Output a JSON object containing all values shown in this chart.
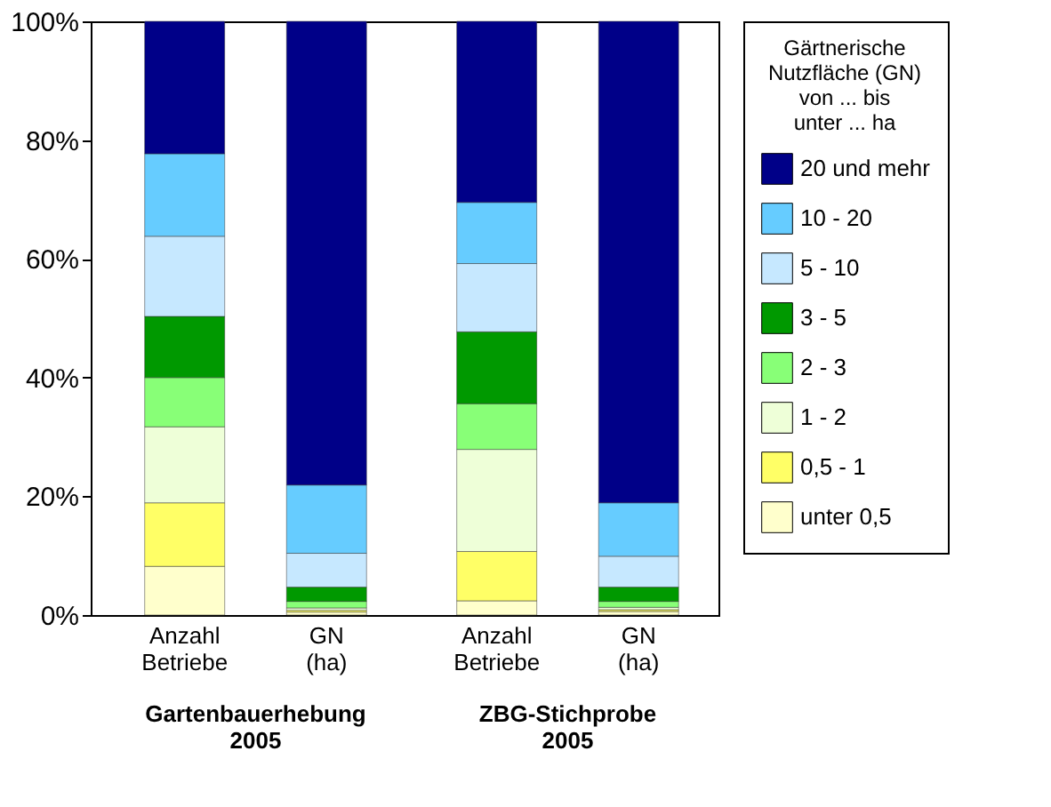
{
  "chart_data": {
    "type": "bar",
    "stacked": true,
    "categories": [
      "Anzahl Betriebe",
      "GN (ha)",
      "Anzahl Betriebe",
      "GN (ha)"
    ],
    "legend_title": "Gärtnerische\nNutzfläche (GN)\nvon ... bis\nunter ... ha",
    "legend": "right",
    "series": [
      {
        "name": "unter 0,5",
        "color": "#ffffcc",
        "values": [
          8.2,
          0.5,
          2.4,
          0.6
        ]
      },
      {
        "name": "0,5 - 1",
        "color": "#ffff66",
        "values": [
          10.7,
          0.3,
          8.3,
          0.3
        ]
      },
      {
        "name": "1 - 2",
        "color": "#eeffd8",
        "values": [
          12.8,
          0.4,
          17.2,
          0.4
        ]
      },
      {
        "name": "2 - 3",
        "color": "#88ff77",
        "values": [
          8.3,
          1.1,
          7.7,
          1.0
        ]
      },
      {
        "name": "3 - 5",
        "color": "#009900",
        "values": [
          10.3,
          2.4,
          12.1,
          2.4
        ]
      },
      {
        "name": "5 - 10",
        "color": "#c6e8ff",
        "values": [
          13.5,
          5.7,
          11.5,
          5.2
        ]
      },
      {
        "name": "10 - 20",
        "color": "#66ccff",
        "values": [
          13.9,
          11.5,
          10.3,
          9.0
        ]
      },
      {
        "name": "20 und mehr",
        "color": "#000088",
        "values": [
          22.3,
          78.1,
          30.5,
          81.1
        ]
      }
    ],
    "ylim": [
      0,
      100
    ],
    "yticks": [
      {
        "value": 0,
        "label": "0%"
      },
      {
        "value": 20,
        "label": "20%"
      },
      {
        "value": 40,
        "label": "40%"
      },
      {
        "value": 60,
        "label": "60%"
      },
      {
        "value": 80,
        "label": "80%"
      },
      {
        "value": 100,
        "label": "100%"
      }
    ],
    "grid": false,
    "annotations": [
      "Gartenbauerhebung 2005",
      "ZBG-Stichprobe 2005"
    ]
  }
}
